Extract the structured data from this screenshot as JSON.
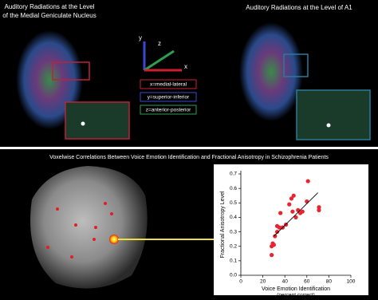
{
  "top_panel": {
    "left_title": [
      "Auditory Radiations at the Level",
      "of the Medial Geniculate Nucleus"
    ],
    "right_title": "Auditory Radiations at the Level of A1",
    "axis_letters": [
      "y",
      "z",
      "x"
    ],
    "legend": [
      "x=medial-lateral",
      "y=superior-inferior",
      "z=anterior-posterior"
    ]
  },
  "bottom_panel": {
    "title": "Voxelwise Correlations Between Voice Emotion Identification and Fractional Anisotropy in Schizophrenia Patients"
  },
  "chart_data": {
    "type": "scatter",
    "x_label": [
      "Voice Emotion Identification",
      "(percent correct)"
    ],
    "y_label": "Fractional Anisotropy Level",
    "color": "#e8252f",
    "x": [
      28,
      28,
      29,
      30,
      31,
      33,
      33,
      35,
      36,
      38,
      41,
      44,
      46,
      47,
      48,
      50,
      52,
      54,
      56,
      60,
      61,
      71,
      71
    ],
    "values": [
      0.14,
      0.2,
      0.22,
      0.21,
      0.27,
      0.3,
      0.34,
      0.33,
      0.43,
      0.33,
      0.35,
      0.49,
      0.53,
      0.44,
      0.55,
      0.4,
      0.45,
      0.43,
      0.44,
      0.51,
      0.65,
      0.45,
      0.47
    ],
    "fit_line": {
      "x": [
        30,
        70
      ],
      "y": [
        0.27,
        0.57
      ]
    },
    "xlim": [
      0,
      100
    ],
    "ylim": [
      0,
      0.7
    ],
    "xticks": [
      0,
      20,
      40,
      60,
      80,
      100
    ],
    "yticks": [
      {
        "value": 0,
        "label": "0.0"
      },
      0.1,
      0.2,
      0.3,
      0.4,
      0.5,
      0.6,
      0.7
    ]
  }
}
